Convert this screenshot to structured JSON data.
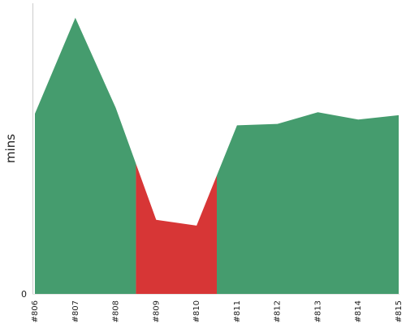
{
  "chart_data": {
    "type": "area",
    "title": "",
    "xlabel": "",
    "ylabel": "mins",
    "categories": [
      "#806",
      "#807",
      "#808",
      "#809",
      "#810",
      "#811",
      "#812",
      "#813",
      "#814",
      "#815"
    ],
    "values": [
      62,
      95,
      64,
      25.5,
      23.5,
      58,
      58.5,
      62.5,
      60,
      61.5
    ],
    "status": [
      "ok",
      "ok",
      "ok",
      "fail",
      "fail",
      "ok",
      "ok",
      "ok",
      "ok",
      "ok"
    ],
    "y_tick_labels": [
      "0"
    ],
    "ylim": [
      0,
      100
    ],
    "grid": false,
    "colors": {
      "ok": "#459c6e",
      "fail": "#d73636",
      "axis": "#cccccc"
    }
  }
}
